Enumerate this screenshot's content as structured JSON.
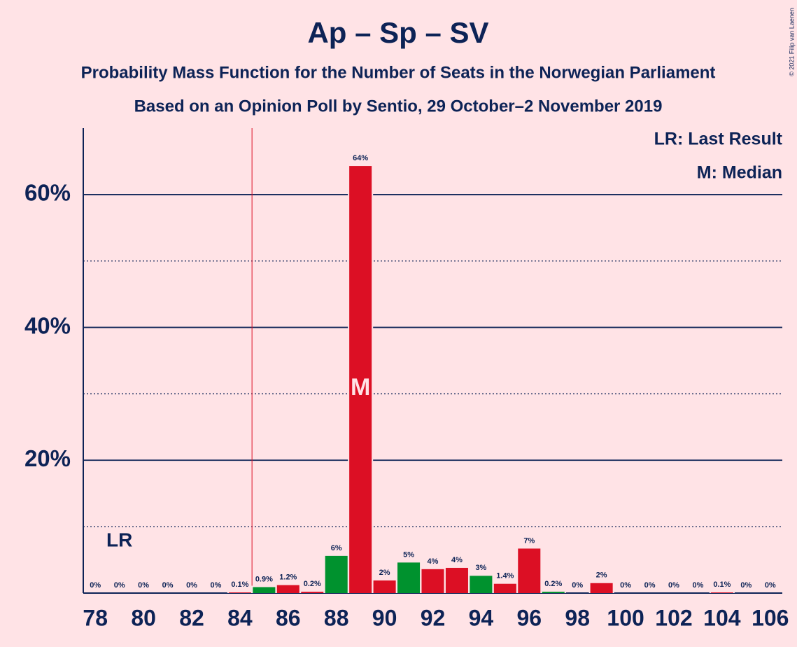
{
  "chart_data": {
    "type": "bar",
    "title": "Ap – Sp – SV",
    "subtitle": "Probability Mass Function for the Number of Seats in the Norwegian Parliament",
    "subtitle2": "Based on an Opinion Poll by Sentio, 29 October–2 November 2019",
    "credit": "© 2021 Filip van Laenen",
    "x": [
      78,
      79,
      80,
      81,
      82,
      83,
      84,
      85,
      86,
      87,
      88,
      89,
      90,
      91,
      92,
      93,
      94,
      95,
      96,
      97,
      98,
      99,
      100,
      101,
      102,
      103,
      104,
      105,
      106
    ],
    "values": [
      0,
      0,
      0,
      0,
      0,
      0,
      0.1,
      0.9,
      1.2,
      0.2,
      5.6,
      64.3,
      1.9,
      4.6,
      3.6,
      3.8,
      2.6,
      1.4,
      6.7,
      0.2,
      0,
      1.5,
      0,
      0,
      0,
      0,
      0.1,
      0,
      0
    ],
    "value_labels": [
      "0%",
      "0%",
      "0%",
      "0%",
      "0%",
      "0%",
      "0.1%",
      "0.9%",
      "1.2%",
      "0.2%",
      "6%",
      "64%",
      "2%",
      "5%",
      "4%",
      "4%",
      "3%",
      "1.4%",
      "7%",
      "0.2%",
      "0%",
      "2%",
      "0%",
      "0%",
      "0%",
      "0%",
      "0.1%",
      "0%",
      "0%"
    ],
    "colors": [
      "#dc0f24",
      "#dc0f24",
      "#00922e",
      "#dc0f24",
      "#dc0f24",
      "#00922e",
      "#dc0f24",
      "#00922e",
      "#dc0f24",
      "#dc0f24",
      "#00922e",
      "#dc0f24",
      "#dc0f24",
      "#00922e",
      "#dc0f24",
      "#dc0f24",
      "#00922e",
      "#dc0f24",
      "#dc0f24",
      "#00922e",
      "#dc0f24",
      "#dc0f24",
      "#00922e",
      "#dc0f24",
      "#dc0f24",
      "#00922e",
      "#dc0f24",
      "#dc0f24",
      "#00922e"
    ],
    "xlim": [
      77.5,
      106.5
    ],
    "xticks": [
      78,
      80,
      82,
      84,
      86,
      88,
      90,
      92,
      94,
      96,
      98,
      100,
      102,
      104,
      106
    ],
    "ylim": [
      0,
      70
    ],
    "yticks": [
      {
        "value": 20,
        "label": "20%"
      },
      {
        "value": 40,
        "label": "40%"
      },
      {
        "value": 60,
        "label": "60%"
      }
    ],
    "minor_yticks": [
      10,
      30,
      50
    ],
    "grid": true,
    "last_result": 84.5,
    "last_result_label": "LR",
    "median": 89,
    "median_label": "M",
    "legend": [
      "LR: Last Result",
      "M: Median"
    ]
  }
}
